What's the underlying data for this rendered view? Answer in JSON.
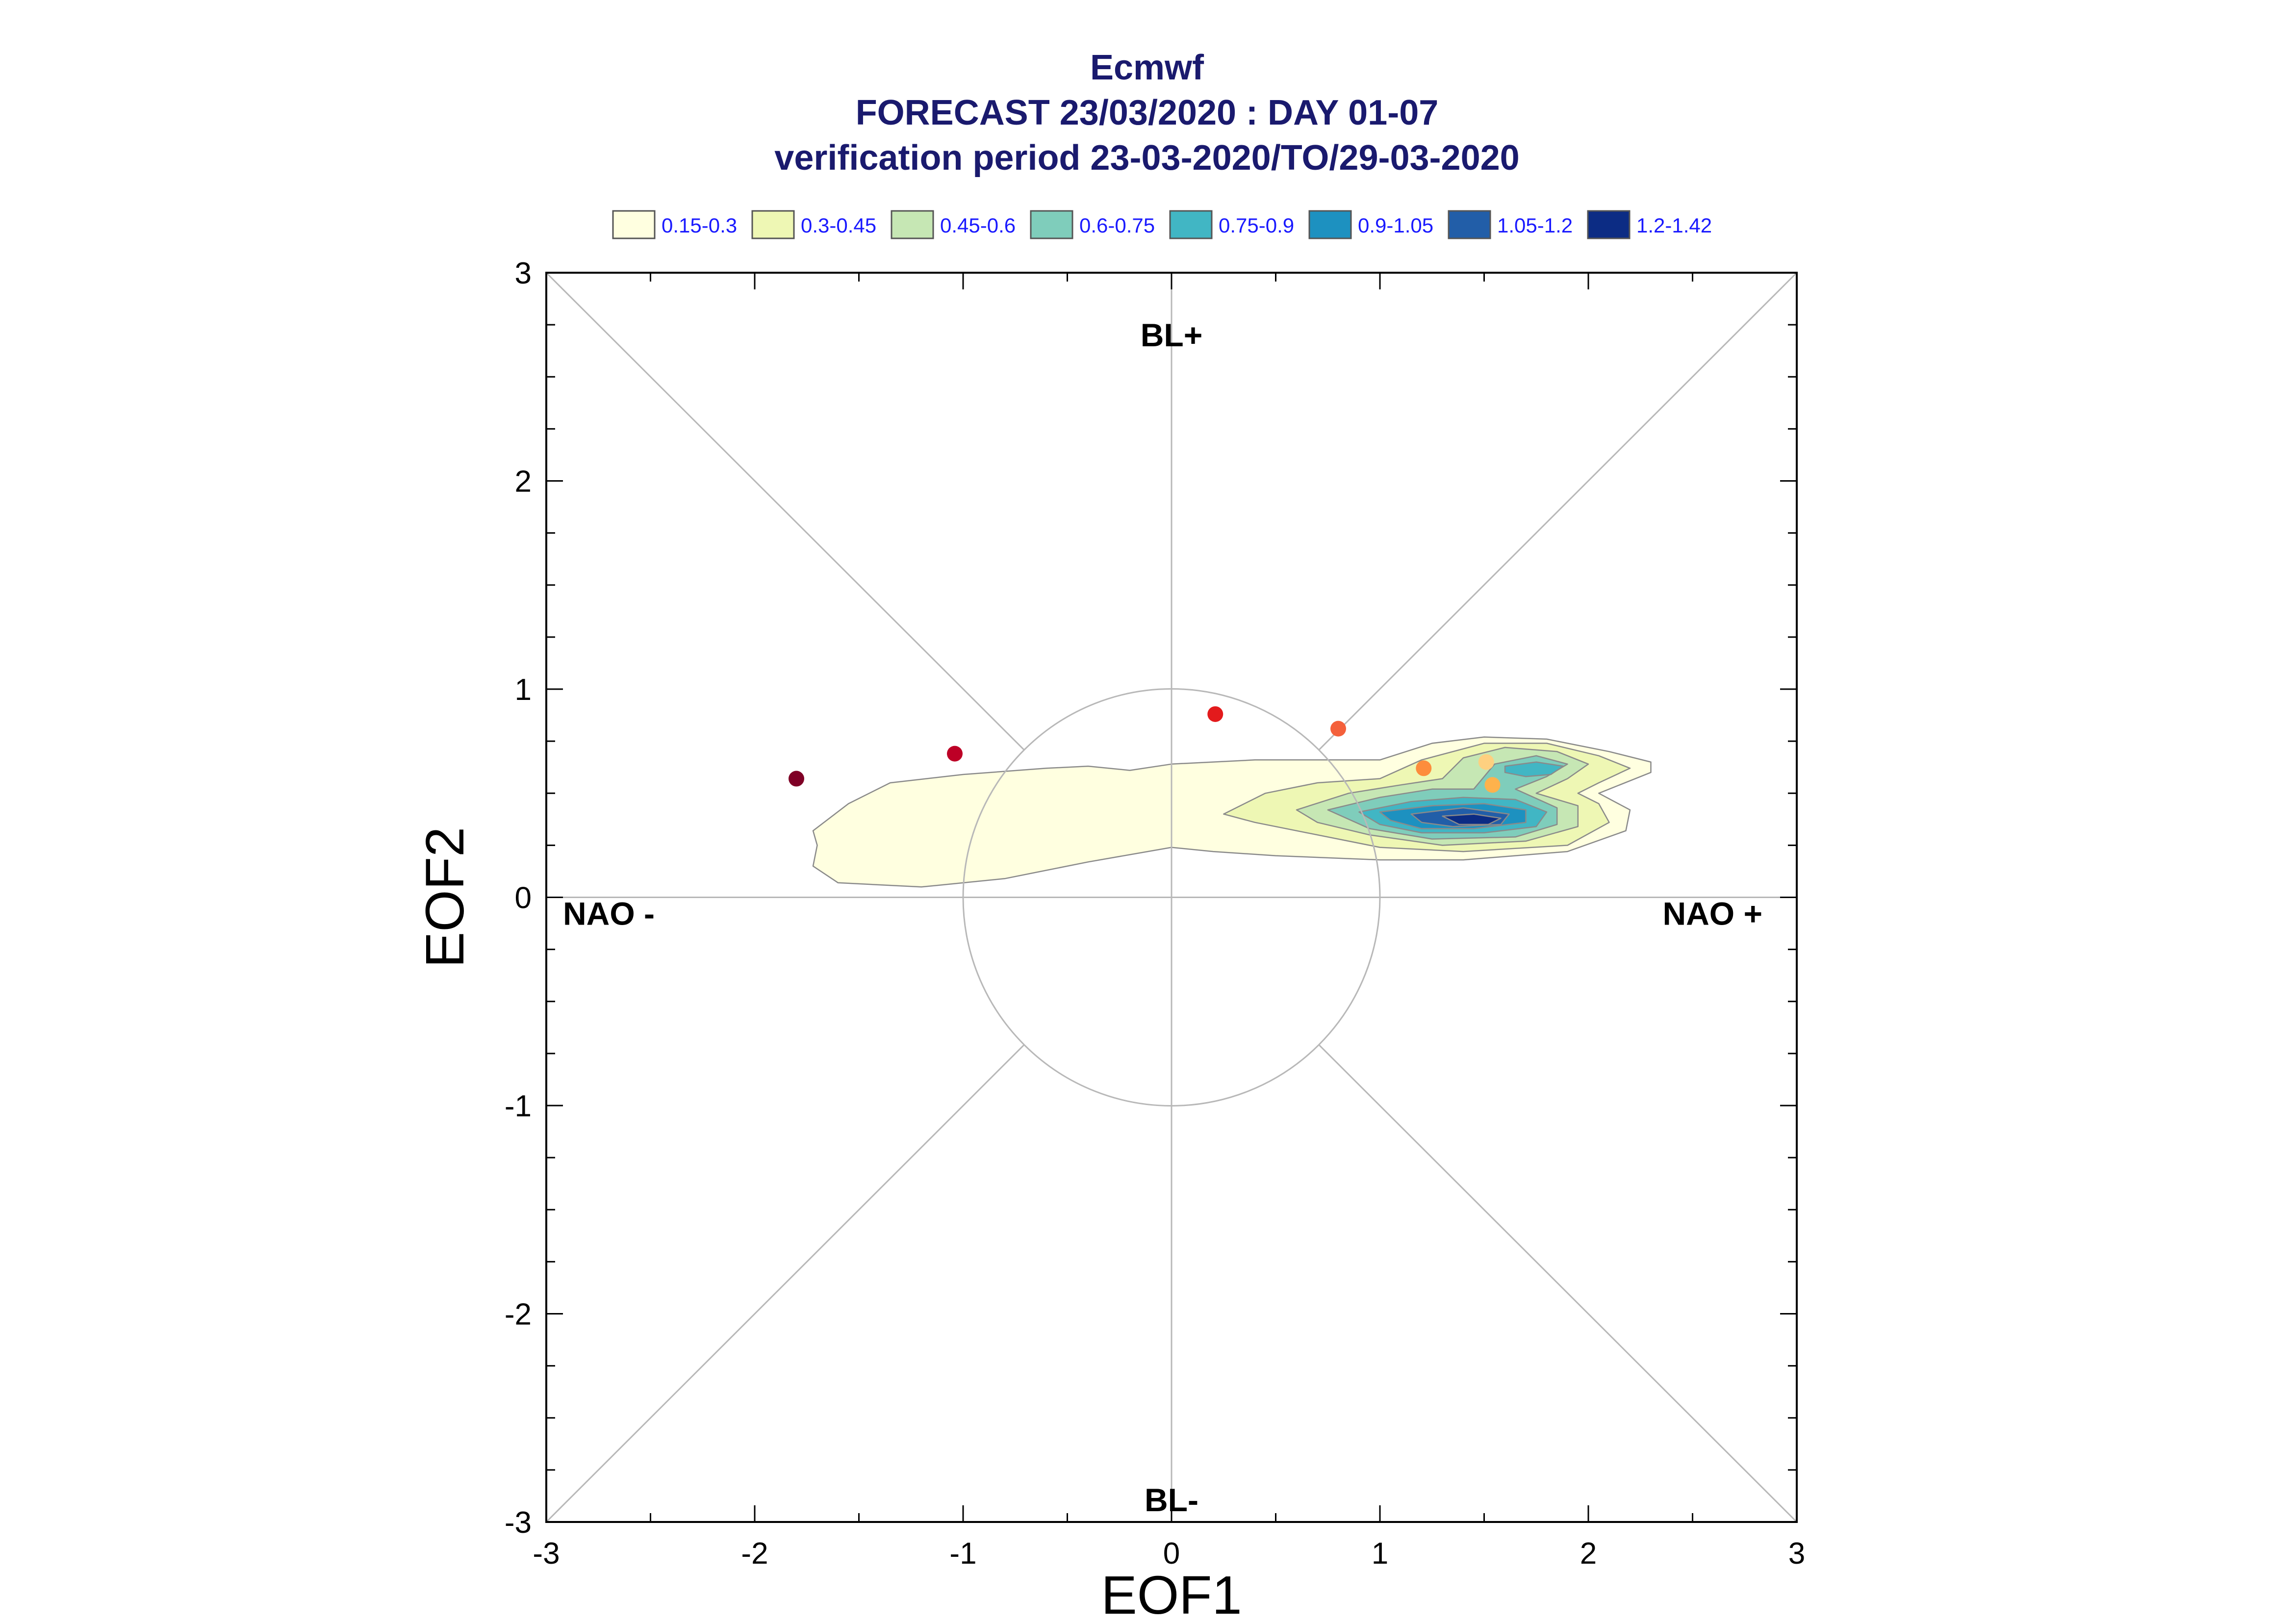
{
  "chart_data": {
    "type": "scatter",
    "title_lines": [
      "Ecmwf",
      "FORECAST 23/03/2020 : DAY 01-07",
      "verification period 23-03-2020/TO/29-03-2020"
    ],
    "xlabel": "EOF1",
    "ylabel": "EOF2",
    "xlim": [
      -3,
      3
    ],
    "ylim": [
      -3,
      3
    ],
    "xticks": [
      "-3",
      "-2",
      "-1",
      "0",
      "1",
      "2",
      "3"
    ],
    "yticks": [
      "-3",
      "-2",
      "-1",
      "0",
      "1",
      "2",
      "3"
    ],
    "regime_labels": {
      "top": "BL+",
      "bottom": "BL-",
      "left": "NAO -",
      "right": "NAO +"
    },
    "legend": [
      {
        "label": "0.15-0.3",
        "color": "#ffffe0"
      },
      {
        "label": "0.3-0.45",
        "color": "#eef7b4"
      },
      {
        "label": "0.45-0.6",
        "color": "#c6e7b4"
      },
      {
        "label": "0.6-0.75",
        "color": "#7fcdbb"
      },
      {
        "label": "0.75-0.9",
        "color": "#41b6c4"
      },
      {
        "label": "0.9-1.05",
        "color": "#1d91c0"
      },
      {
        "label": "1.05-1.2",
        "color": "#225ea8"
      },
      {
        "label": "1.2-1.42",
        "color": "#0c2c84"
      }
    ],
    "points": [
      {
        "x": -1.8,
        "y": 0.57,
        "color": "#7f0026"
      },
      {
        "x": -1.04,
        "y": 0.69,
        "color": "#bd0026"
      },
      {
        "x": 0.21,
        "y": 0.88,
        "color": "#e31a1c"
      },
      {
        "x": 0.8,
        "y": 0.81,
        "color": "#f4603b"
      },
      {
        "x": 1.21,
        "y": 0.62,
        "color": "#fd8d3c"
      },
      {
        "x": 1.51,
        "y": 0.65,
        "color": "#fed080"
      },
      {
        "x": 1.54,
        "y": 0.54,
        "color": "#feb24c"
      }
    ],
    "density_contours": [
      {
        "level": "0.15-0.3",
        "color": "#ffffe0",
        "polygon": [
          [
            -1.7,
            0.25
          ],
          [
            -1.72,
            0.32
          ],
          [
            -1.55,
            0.45
          ],
          [
            -1.35,
            0.55
          ],
          [
            -1.0,
            0.59
          ],
          [
            -0.6,
            0.62
          ],
          [
            -0.4,
            0.63
          ],
          [
            -0.2,
            0.61
          ],
          [
            0.0,
            0.64
          ],
          [
            0.4,
            0.66
          ],
          [
            1.0,
            0.66
          ],
          [
            1.25,
            0.74
          ],
          [
            1.5,
            0.77
          ],
          [
            1.8,
            0.76
          ],
          [
            2.1,
            0.7
          ],
          [
            2.3,
            0.65
          ],
          [
            2.3,
            0.6
          ],
          [
            2.05,
            0.5
          ],
          [
            2.2,
            0.42
          ],
          [
            2.18,
            0.32
          ],
          [
            1.9,
            0.22
          ],
          [
            1.4,
            0.18
          ],
          [
            1.0,
            0.18
          ],
          [
            0.5,
            0.2
          ],
          [
            0.2,
            0.22
          ],
          [
            0.0,
            0.24
          ],
          [
            -0.4,
            0.17
          ],
          [
            -0.8,
            0.09
          ],
          [
            -1.2,
            0.05
          ],
          [
            -1.6,
            0.07
          ],
          [
            -1.72,
            0.15
          ]
        ]
      },
      {
        "level": "0.3-0.45",
        "color": "#eef7b4",
        "polygon": [
          [
            0.25,
            0.4
          ],
          [
            0.45,
            0.5
          ],
          [
            0.7,
            0.55
          ],
          [
            1.0,
            0.57
          ],
          [
            1.2,
            0.66
          ],
          [
            1.5,
            0.74
          ],
          [
            1.8,
            0.74
          ],
          [
            2.05,
            0.68
          ],
          [
            2.2,
            0.62
          ],
          [
            2.05,
            0.55
          ],
          [
            1.95,
            0.5
          ],
          [
            2.05,
            0.45
          ],
          [
            2.1,
            0.36
          ],
          [
            1.9,
            0.25
          ],
          [
            1.4,
            0.22
          ],
          [
            1.0,
            0.24
          ],
          [
            0.6,
            0.32
          ],
          [
            0.4,
            0.36
          ]
        ]
      },
      {
        "level": "0.45-0.6",
        "color": "#c6e7b4",
        "polygon": [
          [
            0.6,
            0.42
          ],
          [
            0.85,
            0.5
          ],
          [
            1.1,
            0.54
          ],
          [
            1.3,
            0.57
          ],
          [
            1.4,
            0.67
          ],
          [
            1.6,
            0.72
          ],
          [
            1.85,
            0.7
          ],
          [
            2.0,
            0.64
          ],
          [
            1.9,
            0.57
          ],
          [
            1.75,
            0.5
          ],
          [
            1.95,
            0.44
          ],
          [
            1.95,
            0.34
          ],
          [
            1.7,
            0.27
          ],
          [
            1.3,
            0.25
          ],
          [
            0.95,
            0.3
          ],
          [
            0.7,
            0.36
          ]
        ]
      },
      {
        "level": "0.6-0.75",
        "color": "#7fcdbb",
        "polygon": [
          [
            0.75,
            0.42
          ],
          [
            1.0,
            0.48
          ],
          [
            1.25,
            0.52
          ],
          [
            1.45,
            0.52
          ],
          [
            1.55,
            0.64
          ],
          [
            1.75,
            0.68
          ],
          [
            1.9,
            0.64
          ],
          [
            1.8,
            0.58
          ],
          [
            1.65,
            0.52
          ],
          [
            1.85,
            0.43
          ],
          [
            1.85,
            0.35
          ],
          [
            1.65,
            0.29
          ],
          [
            1.25,
            0.28
          ],
          [
            0.95,
            0.33
          ]
        ]
      },
      {
        "level": "0.75-0.9",
        "color": "#41b6c4",
        "polygon": [
          [
            0.9,
            0.41
          ],
          [
            1.15,
            0.46
          ],
          [
            1.4,
            0.48
          ],
          [
            1.65,
            0.47
          ],
          [
            1.8,
            0.41
          ],
          [
            1.75,
            0.34
          ],
          [
            1.5,
            0.31
          ],
          [
            1.2,
            0.31
          ],
          [
            1.0,
            0.35
          ]
        ]
      },
      {
        "level": "0.75-0.9",
        "color": "#41b6c4",
        "polygon": [
          [
            1.6,
            0.63
          ],
          [
            1.75,
            0.65
          ],
          [
            1.88,
            0.63
          ],
          [
            1.82,
            0.59
          ],
          [
            1.7,
            0.58
          ],
          [
            1.6,
            0.6
          ]
        ]
      },
      {
        "level": "0.9-1.05",
        "color": "#1d91c0",
        "polygon": [
          [
            1.0,
            0.41
          ],
          [
            1.25,
            0.44
          ],
          [
            1.5,
            0.45
          ],
          [
            1.7,
            0.42
          ],
          [
            1.7,
            0.36
          ],
          [
            1.45,
            0.33
          ],
          [
            1.2,
            0.33
          ],
          [
            1.05,
            0.37
          ]
        ]
      },
      {
        "level": "1.05-1.2",
        "color": "#225ea8",
        "polygon": [
          [
            1.15,
            0.4
          ],
          [
            1.4,
            0.43
          ],
          [
            1.62,
            0.4
          ],
          [
            1.58,
            0.35
          ],
          [
            1.35,
            0.34
          ],
          [
            1.2,
            0.36
          ]
        ]
      },
      {
        "level": "1.2-1.42",
        "color": "#0c2c84",
        "polygon": [
          [
            1.3,
            0.39
          ],
          [
            1.45,
            0.4
          ],
          [
            1.58,
            0.38
          ],
          [
            1.52,
            0.35
          ],
          [
            1.38,
            0.35
          ]
        ]
      }
    ]
  }
}
